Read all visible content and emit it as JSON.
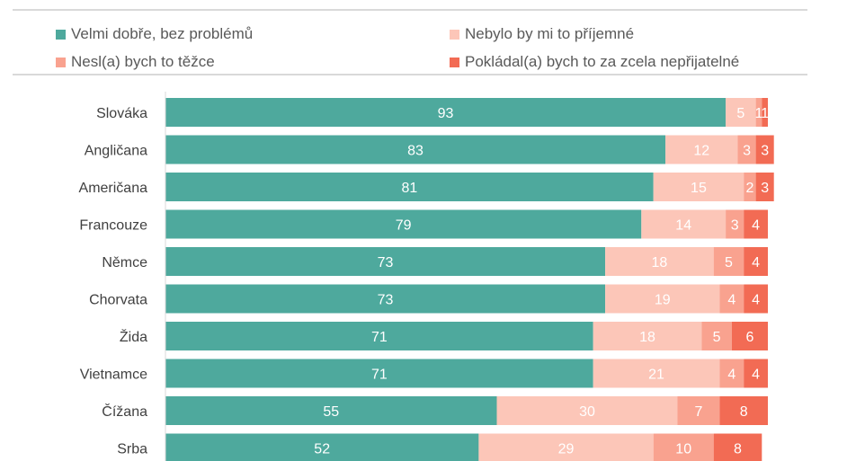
{
  "chart_data": {
    "type": "bar",
    "orientation": "horizontal",
    "stacked": true,
    "categories": [
      "Slováka",
      "Angličana",
      "Američana",
      "Francouze",
      "Němce",
      "Chorvata",
      "Žida",
      "Vietnamce",
      "Čížana",
      "Srba"
    ],
    "series": [
      {
        "name": "Velmi dobře, bez problémů",
        "color": "#4ea99d",
        "values": [
          93,
          83,
          81,
          79,
          73,
          73,
          71,
          71,
          55,
          52
        ]
      },
      {
        "name": "Nebylo by mi to příjemné",
        "color": "#fcc6b8",
        "values": [
          5,
          12,
          15,
          14,
          18,
          19,
          18,
          21,
          30,
          29
        ]
      },
      {
        "name": "Nesl(a) bych to těžce",
        "color": "#f9a28f",
        "values": [
          1,
          3,
          2,
          3,
          5,
          4,
          5,
          4,
          7,
          10
        ]
      },
      {
        "name": "Pokládal(a) bych to za zcela nepřijatelné",
        "color": "#f26b54",
        "values": [
          1,
          3,
          3,
          4,
          4,
          4,
          6,
          4,
          8,
          8
        ]
      }
    ],
    "xlim": [
      0,
      100
    ],
    "legend_position": "top",
    "grid": false
  }
}
